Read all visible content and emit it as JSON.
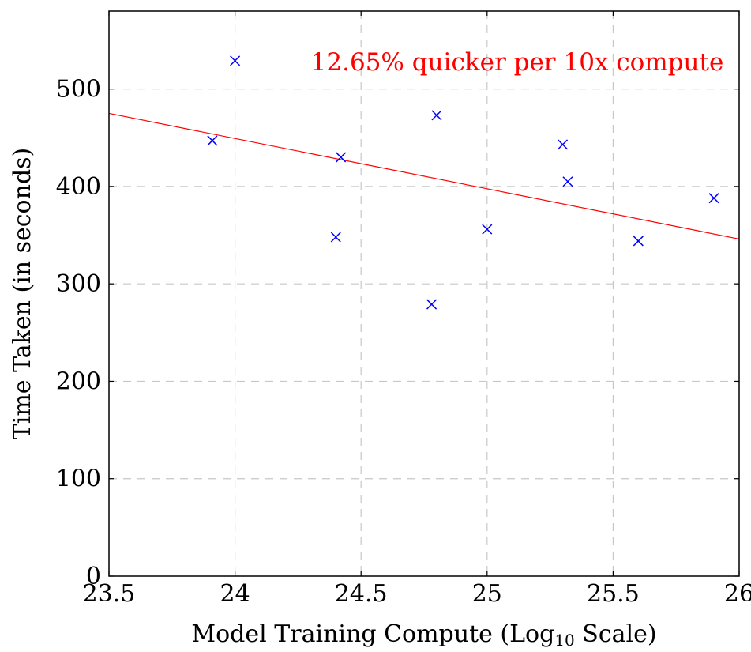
{
  "chart_data": {
    "type": "scatter",
    "title": "",
    "xlabel": {
      "prefix": "Model Training Compute (Log",
      "subscript": "10",
      "suffix": " Scale)"
    },
    "ylabel": "Time Taken (in seconds)",
    "xlim": [
      23.5,
      26
    ],
    "ylim": [
      0,
      580
    ],
    "x_ticks": [
      23.5,
      24,
      24.5,
      25,
      25.5,
      26
    ],
    "x_tick_labels": [
      "23.5",
      "24",
      "24.5",
      "25",
      "25.5",
      "26"
    ],
    "y_ticks": [
      0,
      100,
      200,
      300,
      400,
      500
    ],
    "y_tick_labels": [
      "0",
      "100",
      "200",
      "300",
      "400",
      "500"
    ],
    "grid": true,
    "series": [
      {
        "marker": "x",
        "color": "#0000ff",
        "points": [
          {
            "x": 23.91,
            "y": 447
          },
          {
            "x": 24.0,
            "y": 529
          },
          {
            "x": 24.4,
            "y": 348
          },
          {
            "x": 24.42,
            "y": 430
          },
          {
            "x": 24.78,
            "y": 279
          },
          {
            "x": 24.8,
            "y": 473
          },
          {
            "x": 25.0,
            "y": 356
          },
          {
            "x": 25.3,
            "y": 443
          },
          {
            "x": 25.32,
            "y": 405
          },
          {
            "x": 25.6,
            "y": 344
          },
          {
            "x": 25.9,
            "y": 388
          }
        ]
      }
    ],
    "trend_line": {
      "color": "#ff0000",
      "start": {
        "x": 23.5,
        "y": 475
      },
      "end": {
        "x": 26,
        "y": 346
      }
    },
    "annotation": {
      "text": "12.65% quicker per 10x compute",
      "color": "#ff0000",
      "placement": "top-right"
    }
  }
}
